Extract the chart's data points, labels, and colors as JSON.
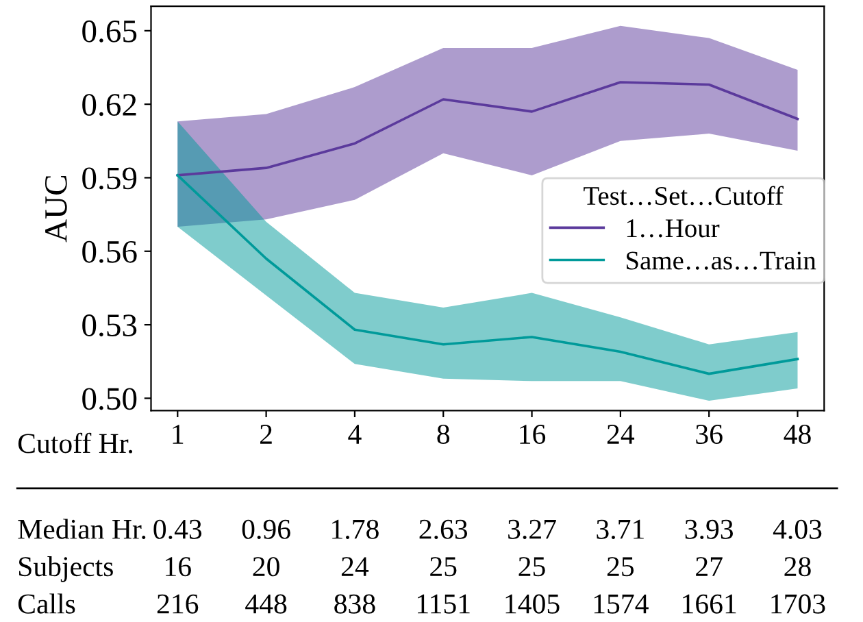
{
  "chart_data": {
    "type": "line",
    "ylabel": "AUC",
    "xlabel": "Cutoff Hr.",
    "legend_title": "Test…Set…Cutoff",
    "legend": "right",
    "categories": [
      "1",
      "2",
      "4",
      "8",
      "16",
      "24",
      "36",
      "48"
    ],
    "ylim": [
      0.495,
      0.66
    ],
    "yticks": [
      {
        "value": 0.65,
        "label": "0.65"
      },
      {
        "value": 0.62,
        "label": "0.62"
      },
      {
        "value": 0.59,
        "label": "0.59"
      },
      {
        "value": 0.56,
        "label": "0.56"
      },
      {
        "value": 0.53,
        "label": "0.53"
      },
      {
        "value": 0.5,
        "label": "0.50"
      }
    ],
    "series": [
      {
        "name": "1…Hour",
        "color": "#5b3a9c",
        "values": [
          0.591,
          0.594,
          0.604,
          0.622,
          0.617,
          0.629,
          0.628,
          0.614
        ],
        "lower": [
          0.57,
          0.573,
          0.581,
          0.6,
          0.591,
          0.605,
          0.608,
          0.601
        ],
        "upper": [
          0.613,
          0.616,
          0.627,
          0.643,
          0.643,
          0.652,
          0.647,
          0.634
        ]
      },
      {
        "name": "Same…as…Train",
        "color": "#009a9a",
        "values": [
          0.591,
          0.557,
          0.528,
          0.522,
          0.525,
          0.519,
          0.51,
          0.516
        ],
        "lower": [
          0.57,
          0.542,
          0.514,
          0.508,
          0.507,
          0.507,
          0.499,
          0.504
        ],
        "upper": [
          0.613,
          0.572,
          0.543,
          0.537,
          0.543,
          0.533,
          0.522,
          0.527
        ]
      }
    ],
    "annotations": [
      "Median Hr.",
      "0.43",
      "0.96",
      "1.78",
      "2.63",
      "3.27",
      "3.71",
      "3.93",
      "4.03",
      "Subjects",
      "16",
      "20",
      "24",
      "25",
      "25",
      "25",
      "27",
      "28",
      "Calls",
      "216",
      "448",
      "838",
      "1151",
      "1405",
      "1574",
      "1661",
      "1703"
    ]
  }
}
